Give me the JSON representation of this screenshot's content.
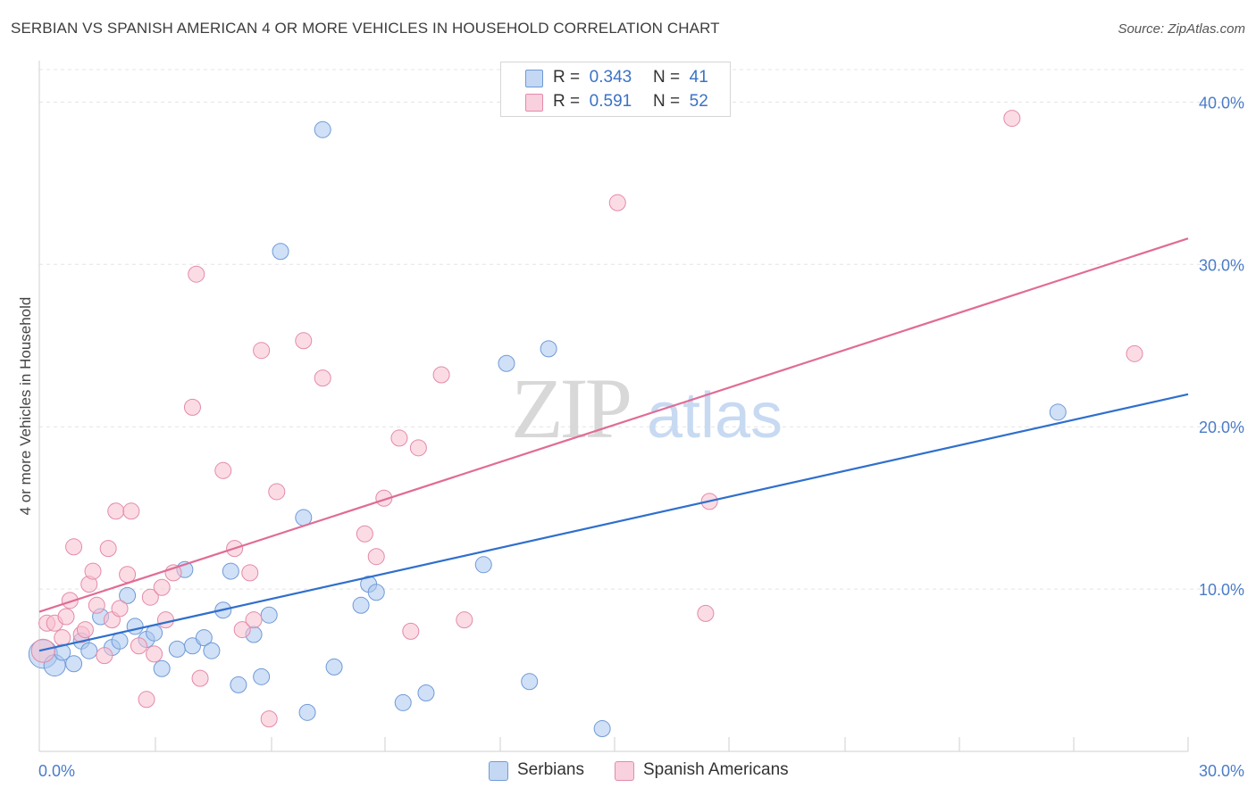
{
  "title": "SERBIAN VS SPANISH AMERICAN 4 OR MORE VEHICLES IN HOUSEHOLD CORRELATION CHART",
  "source": "Source: ZipAtlas.com",
  "watermark": {
    "zip": "ZIP",
    "atlas": "atlas"
  },
  "legend_top": [
    {
      "r_label": "R =",
      "r_value": "0.343",
      "n_label": "N =",
      "n_value": "41"
    },
    {
      "r_label": "R =",
      "r_value": "0.591",
      "n_label": "N =",
      "n_value": "52"
    }
  ],
  "chart_data": {
    "type": "scatter",
    "title": "SERBIAN VS SPANISH AMERICAN 4 OR MORE VEHICLES IN HOUSEHOLD CORRELATION CHART",
    "xlabel": "",
    "ylabel": "4 or more Vehicles in Household",
    "xlim": [
      0,
      30
    ],
    "ylim": [
      0,
      42
    ],
    "x_tick_labels": [
      "0.0%",
      "30.0%"
    ],
    "y_ticks": [
      10,
      20,
      30,
      40
    ],
    "y_tick_labels": [
      "10.0%",
      "20.0%",
      "30.0%",
      "40.0%"
    ],
    "grid": true,
    "legend_position": "bottom",
    "series": [
      {
        "name": "Serbians",
        "color": "#a9c6ee",
        "edge": "#6f9ad8",
        "line_color": "#2f6fcc",
        "trend": {
          "x": [
            0,
            30
          ],
          "y": [
            6.2,
            22.0
          ]
        },
        "points": [
          [
            0.1,
            6.0,
            16
          ],
          [
            0.4,
            5.3,
            12
          ],
          [
            0.6,
            6.1,
            9
          ],
          [
            0.9,
            5.4,
            9
          ],
          [
            1.1,
            6.8,
            9
          ],
          [
            1.3,
            6.2,
            9
          ],
          [
            1.6,
            8.3,
            9
          ],
          [
            1.9,
            6.4,
            9
          ],
          [
            2.1,
            6.8,
            9
          ],
          [
            2.3,
            9.6,
            9
          ],
          [
            2.5,
            7.7,
            9
          ],
          [
            2.8,
            6.9,
            9
          ],
          [
            3.0,
            7.3,
            9
          ],
          [
            3.2,
            5.1,
            9
          ],
          [
            3.6,
            6.3,
            9
          ],
          [
            3.8,
            11.2,
            9
          ],
          [
            4.0,
            6.5,
            9
          ],
          [
            4.3,
            7.0,
            9
          ],
          [
            4.5,
            6.2,
            9
          ],
          [
            4.8,
            8.7,
            9
          ],
          [
            5.0,
            11.1,
            9
          ],
          [
            5.2,
            4.1,
            9
          ],
          [
            5.6,
            7.2,
            9
          ],
          [
            5.8,
            4.6,
            9
          ],
          [
            6.0,
            8.4,
            9
          ],
          [
            6.3,
            30.8,
            9
          ],
          [
            6.9,
            14.4,
            9
          ],
          [
            7.0,
            2.4,
            9
          ],
          [
            7.4,
            38.3,
            9
          ],
          [
            7.7,
            5.2,
            9
          ],
          [
            8.4,
            9.0,
            9
          ],
          [
            8.6,
            10.3,
            9
          ],
          [
            8.8,
            9.8,
            9
          ],
          [
            9.5,
            3.0,
            9
          ],
          [
            10.1,
            3.6,
            9
          ],
          [
            11.6,
            11.5,
            9
          ],
          [
            12.2,
            23.9,
            9
          ],
          [
            12.8,
            4.3,
            9
          ],
          [
            13.3,
            24.8,
            9
          ],
          [
            14.7,
            1.4,
            9
          ],
          [
            26.6,
            20.9,
            9
          ]
        ]
      },
      {
        "name": "Spanish Americans",
        "color": "#f7bfd0",
        "edge": "#e48aa8",
        "line_color": "#e06c95",
        "trend": {
          "x": [
            0,
            30
          ],
          "y": [
            8.6,
            31.6
          ]
        },
        "points": [
          [
            0.1,
            6.2,
            13
          ],
          [
            0.2,
            7.9,
            9
          ],
          [
            0.4,
            7.9,
            9
          ],
          [
            0.6,
            7.0,
            9
          ],
          [
            0.7,
            8.3,
            9
          ],
          [
            0.8,
            9.3,
            9
          ],
          [
            0.9,
            12.6,
            9
          ],
          [
            1.1,
            7.2,
            9
          ],
          [
            1.2,
            7.5,
            9
          ],
          [
            1.3,
            10.3,
            9
          ],
          [
            1.4,
            11.1,
            9
          ],
          [
            1.5,
            9.0,
            9
          ],
          [
            1.7,
            5.9,
            9
          ],
          [
            1.8,
            12.5,
            9
          ],
          [
            1.9,
            8.1,
            9
          ],
          [
            2.0,
            14.8,
            9
          ],
          [
            2.1,
            8.8,
            9
          ],
          [
            2.3,
            10.9,
            9
          ],
          [
            2.4,
            14.8,
            9
          ],
          [
            2.6,
            6.5,
            9
          ],
          [
            2.8,
            3.2,
            9
          ],
          [
            2.9,
            9.5,
            9
          ],
          [
            3.0,
            6.0,
            9
          ],
          [
            3.2,
            10.1,
            9
          ],
          [
            3.3,
            8.1,
            9
          ],
          [
            3.5,
            11.0,
            9
          ],
          [
            4.0,
            21.2,
            9
          ],
          [
            4.1,
            29.4,
            9
          ],
          [
            4.2,
            4.5,
            9
          ],
          [
            4.8,
            17.3,
            9
          ],
          [
            5.1,
            12.5,
            9
          ],
          [
            5.3,
            7.5,
            9
          ],
          [
            5.5,
            11.0,
            9
          ],
          [
            5.6,
            8.1,
            9
          ],
          [
            5.8,
            24.7,
            9
          ],
          [
            6.0,
            2.0,
            9
          ],
          [
            6.2,
            16.0,
            9
          ],
          [
            6.9,
            25.3,
            9
          ],
          [
            7.4,
            23.0,
            9
          ],
          [
            8.5,
            13.4,
            9
          ],
          [
            8.8,
            12.0,
            9
          ],
          [
            9.0,
            15.6,
            9
          ],
          [
            9.4,
            19.3,
            9
          ],
          [
            9.7,
            7.4,
            9
          ],
          [
            9.9,
            18.7,
            9
          ],
          [
            10.5,
            23.2,
            9
          ],
          [
            11.1,
            8.1,
            9
          ],
          [
            15.1,
            33.8,
            9
          ],
          [
            17.4,
            8.5,
            9
          ],
          [
            17.5,
            15.4,
            9
          ],
          [
            25.4,
            39.0,
            9
          ],
          [
            28.6,
            24.5,
            9
          ]
        ]
      }
    ]
  }
}
